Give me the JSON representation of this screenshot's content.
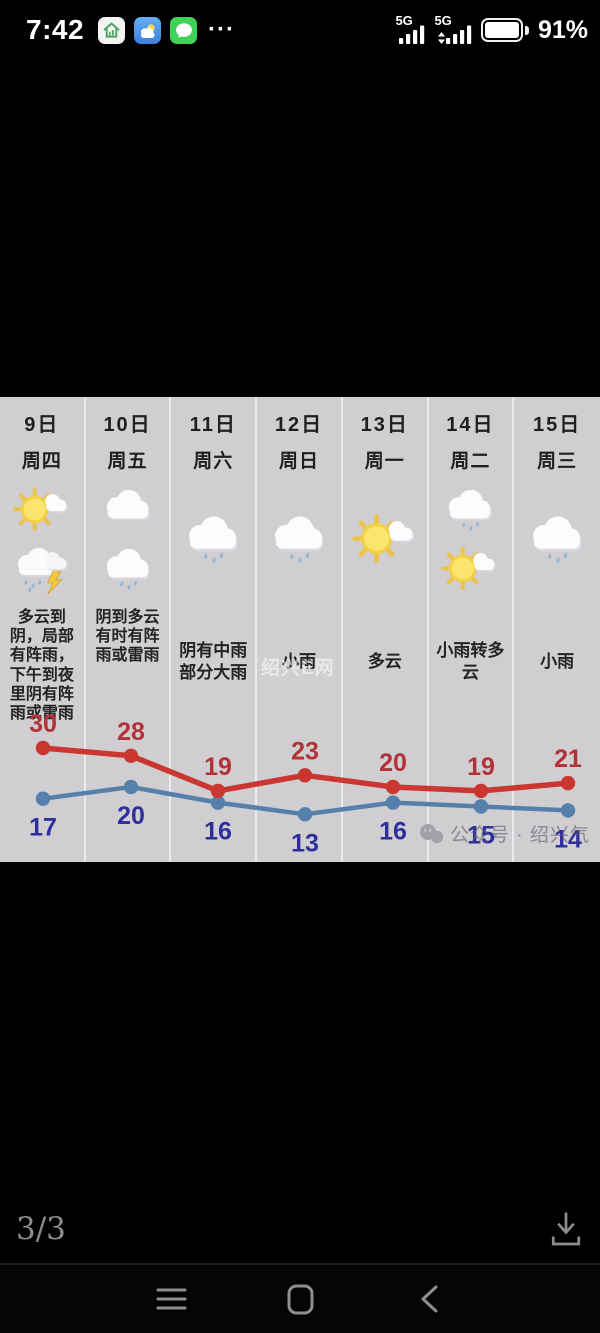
{
  "status_bar": {
    "time": "7:42",
    "app_icons": [
      "home-stats-app",
      "weather-app",
      "messages-app"
    ],
    "more_apps": "···",
    "network1_label": "5G",
    "network2_label": "5G",
    "battery_percent": "91%"
  },
  "forecast": {
    "columns": [
      {
        "date": "9日",
        "day": "周四",
        "icons": [
          "sun_cloud",
          "thunder_rain"
        ],
        "desc": "多云到阴，局部有阵雨，下午到夜里阴有阵雨或雷雨"
      },
      {
        "date": "10日",
        "day": "周五",
        "icons": [
          "cloud",
          "rain"
        ],
        "desc": "阴到多云有时有阵雨或雷雨"
      },
      {
        "date": "11日",
        "day": "周六",
        "icons": [
          "rain"
        ],
        "desc": "阴有中雨部分大雨"
      },
      {
        "date": "12日",
        "day": "周日",
        "icons": [
          "rain"
        ],
        "desc": "小雨"
      },
      {
        "date": "13日",
        "day": "周一",
        "icons": [
          "sun_cloud"
        ],
        "desc": "多云"
      },
      {
        "date": "14日",
        "day": "周二",
        "icons": [
          "rain",
          "sun_cloud"
        ],
        "desc": "小雨转多云"
      },
      {
        "date": "15日",
        "day": "周三",
        "icons": [
          "rain"
        ],
        "desc": "小雨"
      }
    ],
    "watermark_center": "绍兴E网",
    "watermark_bottom": "公众号 · 绍兴气"
  },
  "chart_data": {
    "type": "line",
    "categories": [
      "9日周四",
      "10日周五",
      "11日周六",
      "12日周日",
      "13日周一",
      "14日周二",
      "15日周三"
    ],
    "series": [
      {
        "name": "high",
        "color": "#c93730",
        "label_color": "#b23237",
        "values": [
          30,
          28,
          19,
          23,
          20,
          19,
          21
        ]
      },
      {
        "name": "low",
        "color": "#5580ac",
        "label_color": "#2d2f9c",
        "values": [
          17,
          20,
          16,
          13,
          16,
          15,
          14
        ]
      }
    ],
    "ylim": [
      12,
      31
    ],
    "legend": "none",
    "grid": "vertical-column-dividers"
  },
  "viewer": {
    "page_indicator": "3/3"
  },
  "panel_colors": {
    "background": "#d0ced1",
    "divider": "#eceaee",
    "text": "#1f1f1f"
  }
}
